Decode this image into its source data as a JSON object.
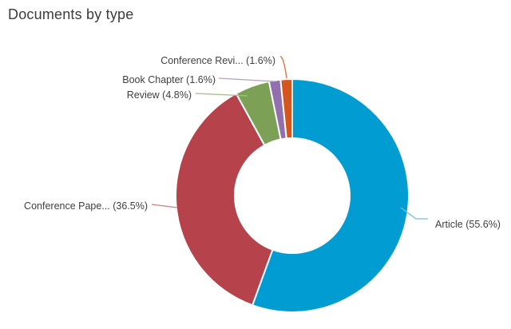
{
  "chart_data": {
    "type": "pie",
    "subtype": "donut",
    "title": "Documents by type",
    "legend": "none",
    "labels_position": "outside-with-leader-lines",
    "inner_radius_ratio": 0.49,
    "direction": "clockwise",
    "start_angle_deg": 0,
    "slices": [
      {
        "id": "article",
        "label": "Article",
        "display_label": "Article (55.6%)",
        "value": 55.6,
        "color": "#009CD2",
        "line_color": "#6cc1e3"
      },
      {
        "id": "conference-paper",
        "label": "Conference Paper",
        "display_label": "Conference Pape... (36.5%)",
        "value": 36.5,
        "color": "#B6434B",
        "line_color": "#c97f84"
      },
      {
        "id": "review",
        "label": "Review",
        "display_label": "Review (4.8%)",
        "value": 4.8,
        "color": "#7CA055",
        "line_color": "#a6c289"
      },
      {
        "id": "book-chapter",
        "label": "Book Chapter",
        "display_label": "Book Chapter (1.6%)",
        "value": 1.6,
        "color": "#926FAF",
        "line_color": "#b79fcd"
      },
      {
        "id": "conference-review",
        "label": "Conference Review",
        "display_label": "Conference Revi... (1.6%)",
        "value": 1.6,
        "color": "#D4551E",
        "line_color": "#dd6c33"
      }
    ]
  }
}
